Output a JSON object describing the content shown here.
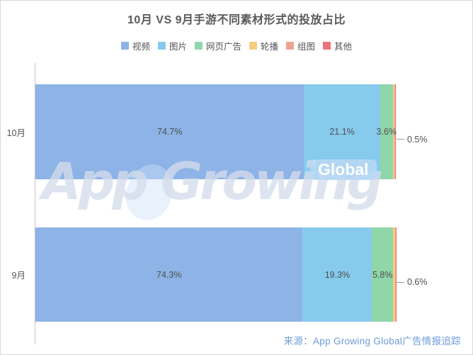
{
  "title": "10月 VS 9月手游不同素材形式的投放占比",
  "source": "来源：App Growing Global广告情报追踪",
  "watermark": {
    "text": "App Growing",
    "badge": "Global"
  },
  "chart_data": {
    "type": "bar",
    "orientation": "horizontal",
    "stacked": true,
    "unit": "%",
    "xlim": [
      0,
      100
    ],
    "grid": false,
    "legend_position": "top",
    "categories": [
      "10月",
      "9月"
    ],
    "series": [
      {
        "name": "视频",
        "color": "#8DB3E7",
        "values": [
          74.7,
          74.3
        ]
      },
      {
        "name": "图片",
        "color": "#86CBEC",
        "values": [
          21.1,
          19.3
        ]
      },
      {
        "name": "网页广告",
        "color": "#8FD6A9",
        "values": [
          3.6,
          5.8
        ]
      },
      {
        "name": "轮播",
        "color": "#F7CD7E",
        "values": [
          0.5,
          0.6
        ]
      },
      {
        "name": "组图",
        "color": "#F0A38C",
        "values": [
          0.2,
          0.2
        ]
      },
      {
        "name": "其他",
        "color": "#E8737C",
        "values": [
          0.1,
          0.1
        ]
      }
    ],
    "inside_labels": [
      [
        "74.7%",
        "21.1%",
        "3.6%",
        null,
        null,
        null
      ],
      [
        "74.3%",
        "19.3%",
        "5.8%",
        null,
        null,
        null
      ]
    ],
    "outside_labels": [
      "0.5%",
      "0.6%"
    ]
  }
}
